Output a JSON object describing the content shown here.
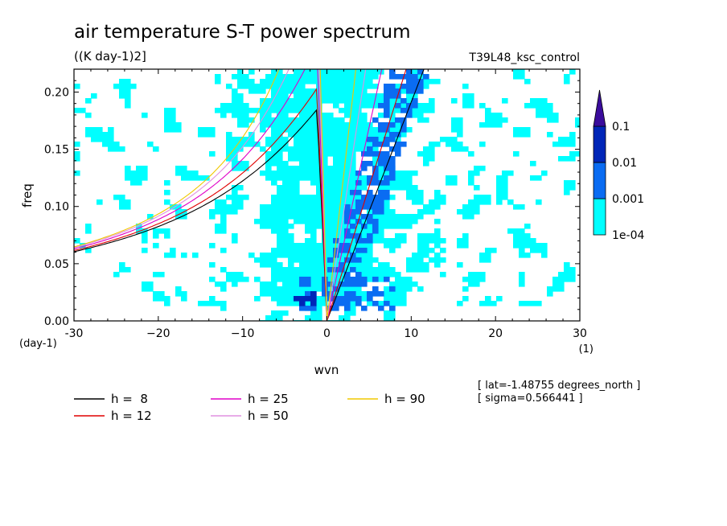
{
  "chart_data": {
    "type": "heatmap",
    "title": "air temperature S-T power spectrum",
    "units": "((K day-1)2]",
    "experiment": "T39L48_ksc_control",
    "xlabel": "wvn",
    "ylabel": "freq",
    "x_unit": "(1)",
    "y_unit": "(day-1)",
    "xlim": [
      -30,
      30
    ],
    "ylim": [
      0,
      0.22
    ],
    "xticks": [
      -30,
      -20,
      -10,
      0,
      10,
      20,
      30
    ],
    "xtick_labels": [
      "-30",
      "−20",
      "−10",
      "0",
      "10",
      "20",
      "30"
    ],
    "yticks": [
      0.0,
      0.05,
      0.1,
      0.15,
      0.2
    ],
    "ytick_labels": [
      "0.00",
      "0.05",
      "0.10",
      "0.15",
      "0.20"
    ],
    "colorbar": {
      "levels": [
        0.0001,
        0.001,
        0.01,
        0.1
      ],
      "labels": [
        "1e-04",
        "0.001",
        "0.01",
        "0.1"
      ],
      "colors": [
        "#00ffff",
        "#0a6cf2",
        "#0026b8",
        "#3a0c9c"
      ]
    },
    "annotations": [
      "[ lat=-1.48755 degrees_north ]",
      "[ sigma=0.566441 ]"
    ],
    "dispersion_curves": [
      {
        "label": "h =  8",
        "h": 8,
        "color": "#000000"
      },
      {
        "label": "h = 12",
        "h": 12,
        "color": "#e00000"
      },
      {
        "label": "h = 25",
        "h": 25,
        "color": "#e000c8"
      },
      {
        "label": "h = 50",
        "h": 50,
        "color": "#e090e0"
      },
      {
        "label": "h = 90",
        "h": 90,
        "color": "#f0c800"
      }
    ]
  }
}
